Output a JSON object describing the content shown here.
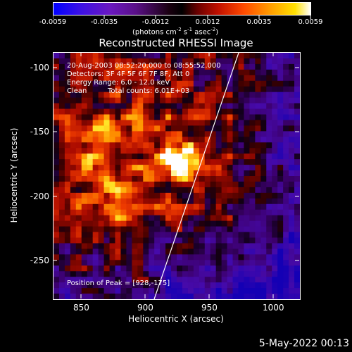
{
  "colorbar": {
    "tick_labels": [
      "-0.0059",
      "-0.0035",
      "-0.0012",
      "0.0012",
      "0.0035",
      "0.0059"
    ],
    "units_prefix": "(photons cm",
    "units_sup1": "-2",
    "units_mid": " s",
    "units_sup2": "-1",
    "units_mid2": " asec",
    "units_sup3": "-2",
    "units_suffix": ")"
  },
  "chart_data": {
    "type": "heatmap",
    "title": "Reconstructed RHESSI Image",
    "xlabel": "Heliocentric X (arcsec)",
    "ylabel": "Heliocentric Y (arcsec)",
    "xlim": [
      828,
      1020
    ],
    "ylim": [
      -285,
      -88
    ],
    "x_ticks": [
      850,
      900,
      950,
      1000
    ],
    "x_tick_labels": [
      "850",
      "900",
      "950",
      "1000"
    ],
    "y_ticks": [
      -100,
      -150,
      -200,
      -250
    ],
    "y_tick_labels": [
      "-100",
      "-150",
      "-200",
      "-250"
    ],
    "colorbar_range": [
      -0.0059,
      0.0059
    ],
    "colormap": "blue-purple-black-red-orange-yellow-white",
    "peak": [
      928,
      -175
    ],
    "annotations": [
      "20-Aug-2003 08:52:20.000 to 08:55:52.000",
      "Detectors: 3F 4F 5F 6F 7F 8F, Att 0",
      "Energy Range: 6.0 - 12.0 keV",
      "Clean",
      "Total counts: 6.01E+03",
      "Position of Peak = [928,-175]"
    ]
  },
  "footer_date": "5-May-2022 00:13"
}
